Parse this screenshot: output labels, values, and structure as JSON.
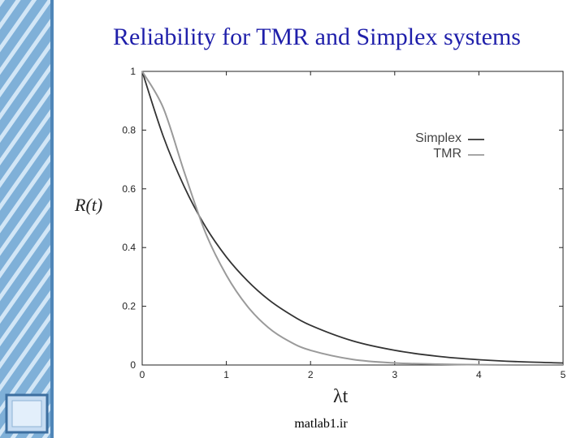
{
  "slide": {
    "title": "Reliability for TMR and Simplex systems",
    "footer": "matlab1.ir"
  },
  "colors": {
    "title": "#1f1faa",
    "sidebar_base": "#7fb0d8",
    "sidebar_stripe": "#d2e6f6",
    "simplex": "#333333",
    "tmr": "#9a9a9a"
  },
  "chart_data": {
    "type": "line",
    "title": "",
    "xlabel": "λt",
    "ylabel": "R(t)",
    "xlim": [
      0,
      5
    ],
    "ylim": [
      0,
      1
    ],
    "xticks": [
      "0",
      "1",
      "2",
      "3",
      "4",
      "5"
    ],
    "yticks": [
      "0",
      "0.2",
      "0.4",
      "0.6",
      "0.8",
      "1"
    ],
    "grid": false,
    "legend_position": "top-right",
    "series": [
      {
        "name": "Simplex",
        "color": "#333333",
        "x": [
          0,
          0.25,
          0.5,
          0.75,
          1,
          1.25,
          1.5,
          1.75,
          2,
          2.5,
          3,
          3.5,
          4,
          4.5,
          5
        ],
        "y": [
          1,
          0.779,
          0.607,
          0.472,
          0.368,
          0.287,
          0.223,
          0.174,
          0.135,
          0.082,
          0.05,
          0.03,
          0.018,
          0.011,
          0.007
        ]
      },
      {
        "name": "TMR",
        "color": "#9a9a9a",
        "x": [
          0,
          0.25,
          0.5,
          0.75,
          1,
          1.25,
          1.5,
          1.75,
          2,
          2.5,
          3,
          3.5,
          4,
          4.5,
          5
        ],
        "y": [
          1,
          0.876,
          0.657,
          0.452,
          0.306,
          0.2,
          0.127,
          0.08,
          0.05,
          0.019,
          0.007,
          0.003,
          0.001,
          0,
          0
        ]
      }
    ]
  }
}
